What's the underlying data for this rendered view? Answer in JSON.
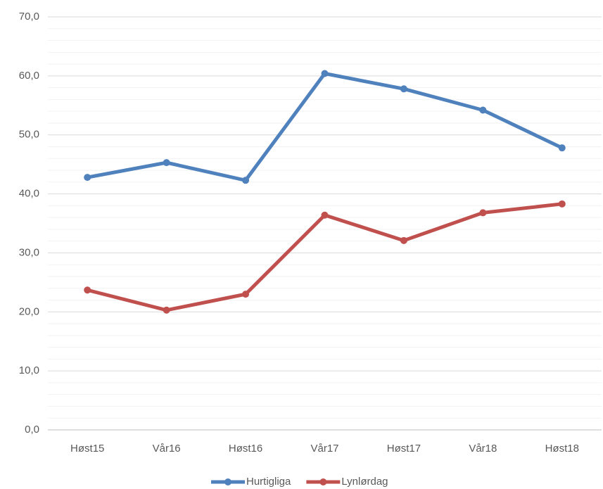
{
  "chart_data": {
    "type": "line",
    "categories": [
      "Høst15",
      "Vår16",
      "Høst16",
      "Vår17",
      "Høst17",
      "Vår18",
      "Høst18"
    ],
    "series": [
      {
        "name": "Hurtigliga",
        "color": "#4f81bd",
        "values": [
          42.8,
          45.3,
          42.3,
          60.4,
          57.8,
          54.2,
          47.8
        ]
      },
      {
        "name": "Lynlørdag",
        "color": "#c0504d",
        "values": [
          23.7,
          20.3,
          23.0,
          36.4,
          32.1,
          36.8,
          38.3
        ]
      }
    ],
    "ylim": [
      0,
      70
    ],
    "yticks": [
      {
        "value": 0,
        "label": "0,0"
      },
      {
        "value": 10,
        "label": "10,0"
      },
      {
        "value": 20,
        "label": "20,0"
      },
      {
        "value": 30,
        "label": "30,0"
      },
      {
        "value": 40,
        "label": "40,0"
      },
      {
        "value": 50,
        "label": "50,0"
      },
      {
        "value": 60,
        "label": "60,0"
      },
      {
        "value": 70,
        "label": "70,0"
      }
    ],
    "yminorticks": [
      2,
      4,
      6,
      8,
      12,
      14,
      16,
      18,
      22,
      24,
      26,
      28,
      32,
      34,
      36,
      38,
      42,
      44,
      46,
      48,
      52,
      54,
      56,
      58,
      62,
      64,
      66,
      68
    ],
    "grid": true,
    "legend": "bottom"
  }
}
